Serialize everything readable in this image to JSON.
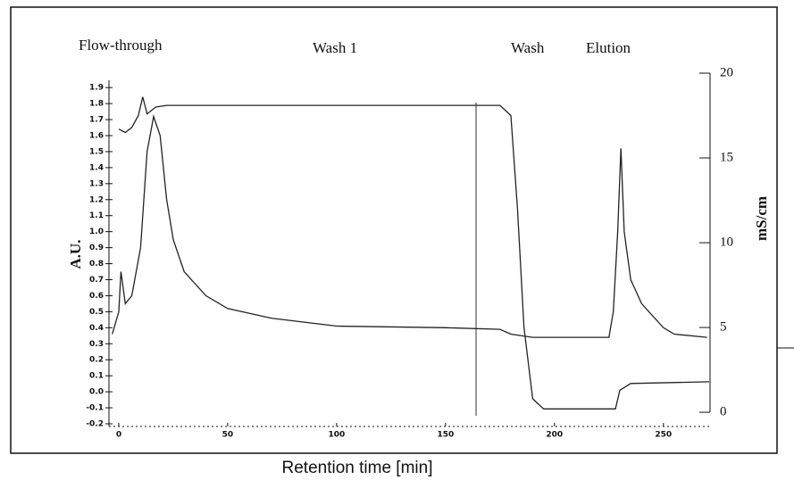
{
  "chart_data": {
    "type": "line",
    "annotations": [
      "Flow-through",
      "Wash 1",
      "Wash",
      "Elution"
    ],
    "xlabel": "Retention time [min]",
    "ylabel": "A.U.",
    "y2label": "mS/cm",
    "xlim": [
      -4.5,
      271
    ],
    "xticks": [
      0,
      50,
      100,
      150,
      200,
      250
    ],
    "ylim": [
      -0.2,
      1.99
    ],
    "yticks": [
      -0.2,
      -0.1,
      {
        "value": 0,
        "label": "0.0"
      },
      0.1,
      0.2,
      0.3,
      0.4,
      0.5,
      0.6,
      0.7,
      0.8,
      0.9,
      {
        "value": 1,
        "label": "1.0"
      },
      1.1,
      1.2,
      1.3,
      1.4,
      1.5,
      1.6,
      1.7,
      1.8,
      1.9
    ],
    "y2lim": [
      -0.68,
      20
    ],
    "y2ticks": [
      0,
      5,
      10,
      15,
      20
    ],
    "series": [
      {
        "color": "#222222",
        "axis": "y",
        "x": [
          -3,
          0,
          1,
          3,
          6,
          10,
          13,
          16,
          19,
          22,
          25,
          30,
          40,
          50,
          70,
          100,
          150,
          175,
          180,
          190,
          225,
          227,
          229,
          230.5,
          232,
          235,
          240,
          250,
          255,
          270
        ],
        "values": [
          0.36,
          0.5,
          0.75,
          0.55,
          0.6,
          0.9,
          1.5,
          1.72,
          1.6,
          1.2,
          0.95,
          0.75,
          0.6,
          0.52,
          0.46,
          0.41,
          0.4,
          0.39,
          0.36,
          0.34,
          0.34,
          0.5,
          1.0,
          1.52,
          1.0,
          0.7,
          0.55,
          0.4,
          0.36,
          0.34
        ]
      },
      {
        "color": "#222222",
        "axis": "y2",
        "x": [
          0,
          3,
          6,
          9,
          11,
          13,
          17,
          22,
          100,
          175,
          180,
          183,
          186,
          190,
          195,
          228,
          230,
          235,
          271
        ],
        "values": [
          16.7,
          16.5,
          16.8,
          17.5,
          18.6,
          17.6,
          18.0,
          18.1,
          18.1,
          18.1,
          17.5,
          12,
          5,
          0.8,
          0.2,
          0.2,
          1.3,
          1.7,
          1.8
        ]
      }
    ]
  }
}
